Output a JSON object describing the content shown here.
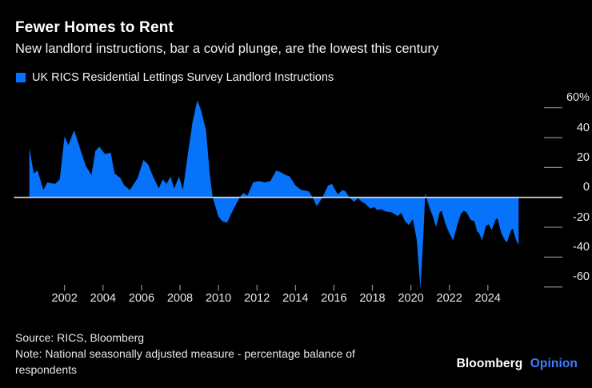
{
  "header": {
    "title": "Fewer Homes to Rent",
    "subtitle": "New landlord instructions, bar a covid plunge, are the lowest this century"
  },
  "legend": {
    "label": "UK RICS Residential Lettings Survey Landlord Instructions",
    "swatch_color": "#0673fa"
  },
  "chart_data": {
    "type": "area",
    "title": "Fewer Homes to Rent",
    "series_name": "UK RICS Residential Lettings Survey Landlord Instructions",
    "unit": "percentage balance of respondents",
    "area_color": "#0673fa",
    "zero_line": true,
    "grid": false,
    "legend_position": "top-left",
    "ylim": [
      -70,
      70
    ],
    "x_range": [
      2000.17,
      2025.6
    ],
    "y_ticks": {
      "values": [
        60,
        40,
        20,
        0,
        -20,
        -40,
        -60
      ],
      "labels": [
        "60%",
        "40",
        "20",
        "0",
        "-20",
        "-40",
        "-60"
      ]
    },
    "x_ticks": {
      "years": [
        2002,
        2004,
        2006,
        2008,
        2010,
        2012,
        2014,
        2016,
        2018,
        2020,
        2022,
        2024
      ],
      "labels": [
        "2002",
        "2004",
        "2006",
        "2008",
        "2010",
        "2012",
        "2014",
        "2016",
        "2018",
        "2020",
        "2022",
        "2024"
      ]
    },
    "points": [
      [
        2000.17,
        33
      ],
      [
        2000.4,
        16
      ],
      [
        2000.6,
        18
      ],
      [
        2000.9,
        5
      ],
      [
        2001.1,
        10
      ],
      [
        2001.5,
        9
      ],
      [
        2001.75,
        12
      ],
      [
        2002.0,
        41
      ],
      [
        2002.2,
        35
      ],
      [
        2002.5,
        45
      ],
      [
        2002.8,
        33
      ],
      [
        2003.1,
        21
      ],
      [
        2003.4,
        15
      ],
      [
        2003.6,
        31
      ],
      [
        2003.8,
        34
      ],
      [
        2004.1,
        29
      ],
      [
        2004.4,
        30
      ],
      [
        2004.6,
        16
      ],
      [
        2004.9,
        13
      ],
      [
        2005.1,
        8
      ],
      [
        2005.4,
        5
      ],
      [
        2005.8,
        13
      ],
      [
        2006.1,
        25
      ],
      [
        2006.35,
        22
      ],
      [
        2006.6,
        14
      ],
      [
        2006.9,
        6
      ],
      [
        2007.1,
        12
      ],
      [
        2007.3,
        9
      ],
      [
        2007.5,
        14
      ],
      [
        2007.7,
        6
      ],
      [
        2007.95,
        14
      ],
      [
        2008.15,
        5
      ],
      [
        2008.4,
        28
      ],
      [
        2008.65,
        50
      ],
      [
        2008.9,
        65
      ],
      [
        2009.1,
        58
      ],
      [
        2009.35,
        45
      ],
      [
        2009.55,
        15
      ],
      [
        2009.7,
        0
      ],
      [
        2010.0,
        -13
      ],
      [
        2010.2,
        -16
      ],
      [
        2010.45,
        -17
      ],
      [
        2010.7,
        -10
      ],
      [
        2010.9,
        -5
      ],
      [
        2011.1,
        0
      ],
      [
        2011.3,
        3
      ],
      [
        2011.5,
        1
      ],
      [
        2011.8,
        10
      ],
      [
        2012.1,
        11
      ],
      [
        2012.4,
        10
      ],
      [
        2012.7,
        11
      ],
      [
        2013.0,
        18
      ],
      [
        2013.2,
        17
      ],
      [
        2013.5,
        15
      ],
      [
        2013.7,
        14
      ],
      [
        2014.0,
        8
      ],
      [
        2014.3,
        5
      ],
      [
        2014.7,
        4
      ],
      [
        2014.9,
        0
      ],
      [
        2015.1,
        -6
      ],
      [
        2015.4,
        0
      ],
      [
        2015.7,
        8
      ],
      [
        2015.9,
        9
      ],
      [
        2016.2,
        2
      ],
      [
        2016.45,
        5
      ],
      [
        2016.6,
        4
      ],
      [
        2016.8,
        0
      ],
      [
        2017.05,
        -3
      ],
      [
        2017.25,
        -0.5
      ],
      [
        2017.45,
        -3
      ],
      [
        2017.6,
        -4
      ],
      [
        2017.9,
        -7.5
      ],
      [
        2018.1,
        -6.5
      ],
      [
        2018.25,
        -8.5
      ],
      [
        2018.45,
        -8
      ],
      [
        2018.7,
        -9.5
      ],
      [
        2019.0,
        -10
      ],
      [
        2019.3,
        -12.5
      ],
      [
        2019.5,
        -10.5
      ],
      [
        2019.7,
        -16
      ],
      [
        2019.9,
        -18.5
      ],
      [
        2020.1,
        -14.5
      ],
      [
        2020.3,
        -28
      ],
      [
        2020.5,
        -61
      ],
      [
        2020.65,
        -25
      ],
      [
        2020.75,
        3
      ],
      [
        2020.9,
        -4
      ],
      [
        2021.0,
        -8
      ],
      [
        2021.15,
        -13
      ],
      [
        2021.3,
        -20
      ],
      [
        2021.5,
        -10
      ],
      [
        2021.6,
        -9
      ],
      [
        2021.8,
        -18
      ],
      [
        2022.0,
        -24
      ],
      [
        2022.2,
        -29
      ],
      [
        2022.4,
        -19
      ],
      [
        2022.6,
        -11
      ],
      [
        2022.75,
        -9
      ],
      [
        2022.9,
        -10
      ],
      [
        2023.1,
        -15
      ],
      [
        2023.3,
        -16
      ],
      [
        2023.45,
        -23
      ],
      [
        2023.55,
        -24
      ],
      [
        2023.7,
        -29
      ],
      [
        2023.9,
        -19
      ],
      [
        2024.05,
        -18
      ],
      [
        2024.2,
        -22
      ],
      [
        2024.4,
        -15
      ],
      [
        2024.5,
        -14
      ],
      [
        2024.7,
        -24
      ],
      [
        2024.9,
        -29
      ],
      [
        2025.0,
        -30
      ],
      [
        2025.2,
        -22
      ],
      [
        2025.3,
        -21
      ],
      [
        2025.45,
        -28
      ],
      [
        2025.6,
        -32
      ]
    ]
  },
  "footer": {
    "source": "Source: RICS, Bloomberg",
    "note": "Note: National seasonally adjusted measure - percentage balance of respondents"
  },
  "logo": {
    "brand": "Bloomberg",
    "product": "Opinion",
    "product_color": "#3d7fff"
  }
}
